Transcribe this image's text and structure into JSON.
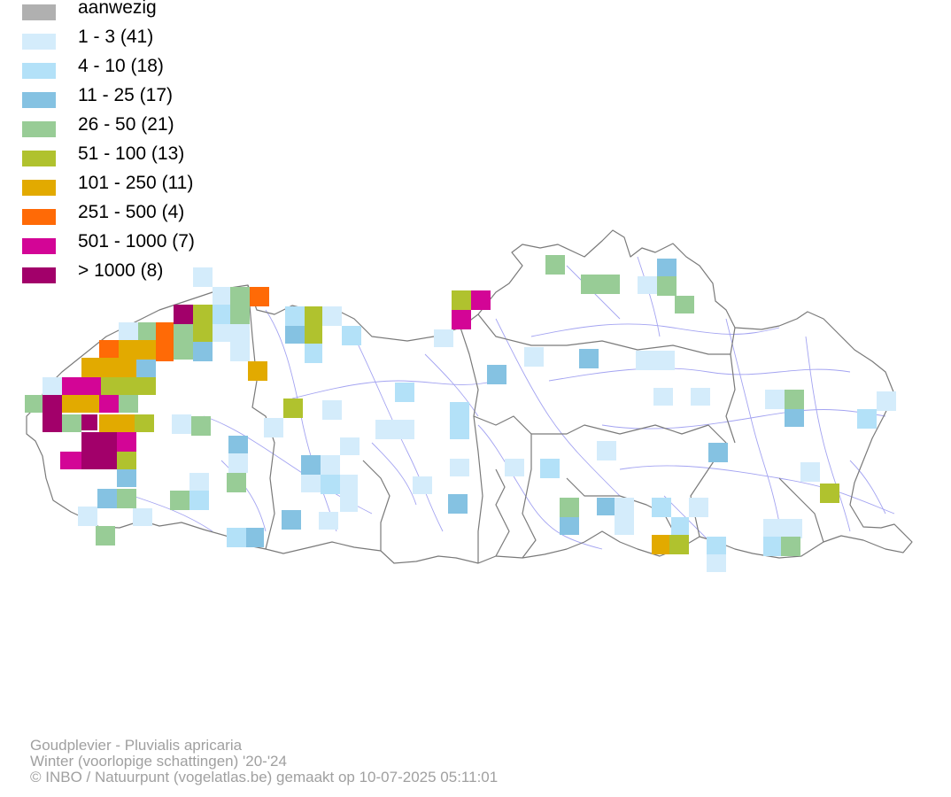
{
  "legend": {
    "items": [
      {
        "label": "aanwezig",
        "color": "#b0b0b0"
      },
      {
        "label": "1 - 3 (41)",
        "color": "#d4ecfb"
      },
      {
        "label": "4 - 10 (18)",
        "color": "#b3e1f8"
      },
      {
        "label": "11 - 25 (17)",
        "color": "#85c2e2"
      },
      {
        "label": "26 - 50 (21)",
        "color": "#98cc96"
      },
      {
        "label": "51 - 100 (13)",
        "color": "#b0c22e"
      },
      {
        "label": "101 - 250 (11)",
        "color": "#e2aa00"
      },
      {
        "label": "251 - 500 (4)",
        "color": "#ff6a06"
      },
      {
        "label": "501 - 1000 (7)",
        "color": "#d30596"
      },
      {
        "label": "> 1000 (8)",
        "color": "#a2006a"
      }
    ]
  },
  "footer": {
    "species": "Goudplevier - Pluvialis apricaria",
    "period": "Winter (voorlopige schattingen) '20-'24",
    "credit": "© INBO / Natuurpunt (vogelatlas.be) gemaakt op 10-07-2025 05:11:01"
  }
}
